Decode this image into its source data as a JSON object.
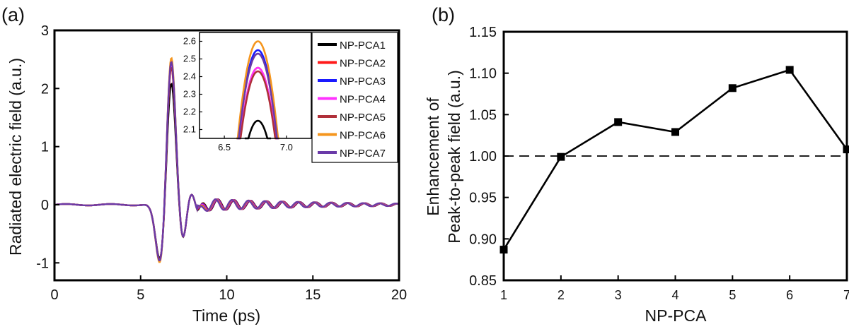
{
  "chart_data": [
    {
      "panel_label": "(a)",
      "type": "line",
      "xlabel": "Time (ps)",
      "ylabel": "Radiated electric field (a.u.)",
      "xlim": [
        0,
        20
      ],
      "ylim": [
        -1.3,
        3
      ],
      "xticks": [
        0,
        5,
        10,
        15,
        20
      ],
      "yticks": [
        -1,
        0,
        1,
        2,
        3
      ],
      "legend_location": "top-right",
      "series": [
        {
          "name": "NP-PCA1",
          "color": "#000000",
          "peak": 2.15,
          "trough": -1.0
        },
        {
          "name": "NP-PCA2",
          "color": "#ff1a1a",
          "peak": 2.45,
          "trough": -1.04
        },
        {
          "name": "NP-PCA3",
          "color": "#1a1aff",
          "peak": 2.55,
          "trough": -1.05
        },
        {
          "name": "NP-PCA4",
          "color": "#ff33ff",
          "peak": 2.45,
          "trough": -1.04
        },
        {
          "name": "NP-PCA5",
          "color": "#b0303a",
          "peak": 2.43,
          "trough": -1.03
        },
        {
          "name": "NP-PCA6",
          "color": "#f5961e",
          "peak": 2.6,
          "trough": -1.08
        },
        {
          "name": "NP-PCA7",
          "color": "#6a3aa8",
          "peak": 2.53,
          "trough": -1.05
        }
      ],
      "inset": {
        "xlim": [
          6.3,
          7.2
        ],
        "ylim": [
          2.05,
          2.65
        ],
        "xticks": [
          6.5,
          7.0
        ],
        "yticks": [
          2.1,
          2.2,
          2.3,
          2.4,
          2.5,
          2.6
        ],
        "peak_time": 6.77
      }
    },
    {
      "panel_label": "(b)",
      "type": "line",
      "xlabel": "NP-PCA",
      "ylabel_line1": "Enhancement of",
      "ylabel_line2": "Peak-to-peak field (a.u.)",
      "xlim": [
        1,
        7
      ],
      "ylim": [
        0.85,
        1.15
      ],
      "xticks": [
        1,
        2,
        3,
        4,
        5,
        6,
        7
      ],
      "yticks": [
        "0.85",
        "0.90",
        "0.95",
        "1.00",
        "1.05",
        "1.10",
        "1.15"
      ],
      "x": [
        1,
        2,
        3,
        4,
        5,
        6,
        7
      ],
      "values": [
        0.887,
        0.999,
        1.041,
        1.029,
        1.082,
        1.104,
        1.008
      ],
      "reference_line": 1.0
    }
  ]
}
